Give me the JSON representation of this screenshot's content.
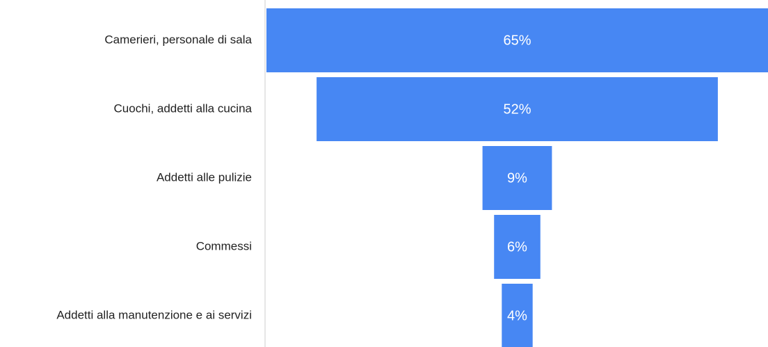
{
  "chart_data": {
    "type": "funnel",
    "categories": [
      "Camerieri, personale di sala",
      "Cuochi, addetti alla cucina",
      "Addetti alle pulizie",
      "Commessi",
      "Addetti alla manutenzione e ai servizi"
    ],
    "values": [
      65,
      52,
      9,
      6,
      4
    ],
    "value_labels": [
      "65%",
      "52%",
      "9%",
      "6%",
      "4%"
    ],
    "color": "#4787f3"
  }
}
